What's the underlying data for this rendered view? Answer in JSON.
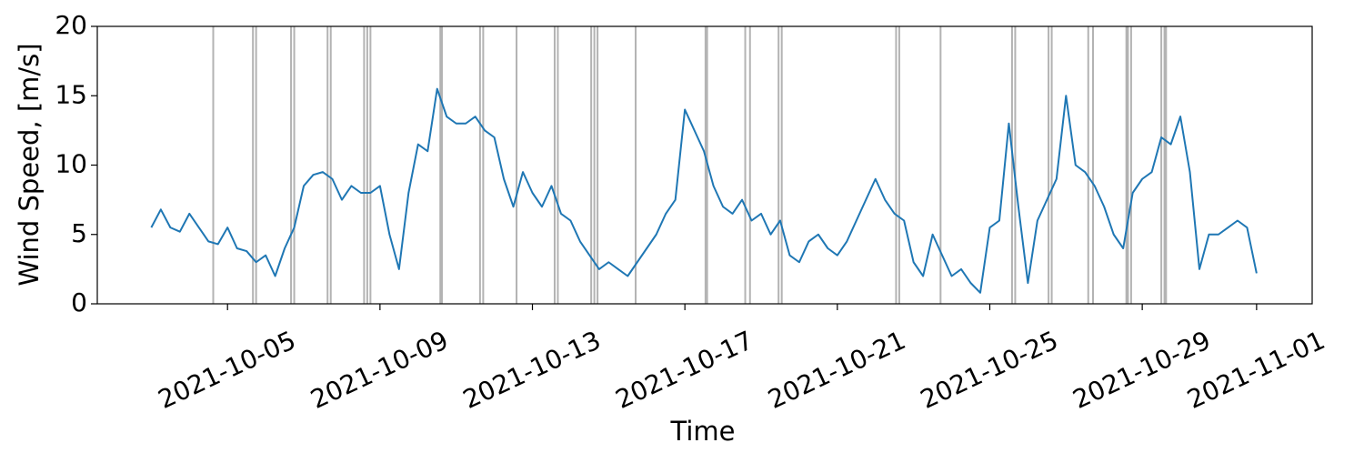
{
  "chart_data": {
    "type": "line",
    "xlabel": "Time",
    "ylabel": "Wind Speed, [m/s]",
    "xlim": [
      "2021-10-01T14:00",
      "2021-11-02T11:00"
    ],
    "ylim": [
      0,
      20
    ],
    "xticks": [
      "2021-10-05",
      "2021-10-09",
      "2021-10-13",
      "2021-10-17",
      "2021-10-21",
      "2021-10-25",
      "2021-10-29",
      "2021-11-01"
    ],
    "yticks": [
      0,
      5,
      10,
      15,
      20
    ],
    "grid": false,
    "series": [
      {
        "color": "#1f77b4",
        "x": [
          "2021-10-03T00:00",
          "2021-10-03T06:00",
          "2021-10-03T12:00",
          "2021-10-03T18:00",
          "2021-10-04T00:00",
          "2021-10-04T06:00",
          "2021-10-04T12:00",
          "2021-10-04T18:00",
          "2021-10-05T00:00",
          "2021-10-05T06:00",
          "2021-10-05T12:00",
          "2021-10-05T18:00",
          "2021-10-06T00:00",
          "2021-10-06T06:00",
          "2021-10-06T12:00",
          "2021-10-06T18:00",
          "2021-10-07T00:00",
          "2021-10-07T06:00",
          "2021-10-07T12:00",
          "2021-10-07T18:00",
          "2021-10-08T00:00",
          "2021-10-08T06:00",
          "2021-10-08T12:00",
          "2021-10-08T18:00",
          "2021-10-09T00:00",
          "2021-10-09T06:00",
          "2021-10-09T12:00",
          "2021-10-09T18:00",
          "2021-10-10T00:00",
          "2021-10-10T06:00",
          "2021-10-10T12:00",
          "2021-10-10T18:00",
          "2021-10-11T00:00",
          "2021-10-11T06:00",
          "2021-10-11T12:00",
          "2021-10-11T18:00",
          "2021-10-12T00:00",
          "2021-10-12T06:00",
          "2021-10-12T12:00",
          "2021-10-12T18:00",
          "2021-10-13T00:00",
          "2021-10-13T06:00",
          "2021-10-13T12:00",
          "2021-10-13T18:00",
          "2021-10-14T00:00",
          "2021-10-14T06:00",
          "2021-10-14T12:00",
          "2021-10-14T18:00",
          "2021-10-15T00:00",
          "2021-10-15T06:00",
          "2021-10-15T12:00",
          "2021-10-15T18:00",
          "2021-10-16T00:00",
          "2021-10-16T06:00",
          "2021-10-16T12:00",
          "2021-10-16T18:00",
          "2021-10-17T00:00",
          "2021-10-17T06:00",
          "2021-10-17T12:00",
          "2021-10-17T18:00",
          "2021-10-18T00:00",
          "2021-10-18T06:00",
          "2021-10-18T12:00",
          "2021-10-18T18:00",
          "2021-10-19T00:00",
          "2021-10-19T06:00",
          "2021-10-19T12:00",
          "2021-10-19T18:00",
          "2021-10-20T00:00",
          "2021-10-20T06:00",
          "2021-10-20T12:00",
          "2021-10-20T18:00",
          "2021-10-21T00:00",
          "2021-10-21T06:00",
          "2021-10-21T12:00",
          "2021-10-21T18:00",
          "2021-10-22T00:00",
          "2021-10-22T06:00",
          "2021-10-22T12:00",
          "2021-10-22T18:00",
          "2021-10-23T00:00",
          "2021-10-23T06:00",
          "2021-10-23T12:00",
          "2021-10-23T18:00",
          "2021-10-24T00:00",
          "2021-10-24T06:00",
          "2021-10-24T12:00",
          "2021-10-24T18:00",
          "2021-10-25T00:00",
          "2021-10-25T06:00",
          "2021-10-25T12:00",
          "2021-10-25T18:00",
          "2021-10-26T00:00",
          "2021-10-26T06:00",
          "2021-10-26T12:00",
          "2021-10-26T18:00",
          "2021-10-27T00:00",
          "2021-10-27T06:00",
          "2021-10-27T12:00",
          "2021-10-27T18:00",
          "2021-10-28T00:00",
          "2021-10-28T06:00",
          "2021-10-28T12:00",
          "2021-10-28T18:00",
          "2021-10-29T00:00",
          "2021-10-29T06:00",
          "2021-10-29T12:00",
          "2021-10-29T18:00",
          "2021-10-30T00:00",
          "2021-10-30T06:00",
          "2021-10-30T12:00",
          "2021-10-30T18:00",
          "2021-10-31T00:00",
          "2021-10-31T06:00",
          "2021-10-31T12:00",
          "2021-10-31T18:00",
          "2021-11-01T00:00"
        ],
        "values": [
          5.5,
          6.8,
          5.5,
          5.2,
          6.5,
          5.5,
          4.5,
          4.3,
          5.5,
          4.0,
          3.8,
          3.0,
          3.5,
          2.0,
          4.0,
          5.5,
          8.5,
          9.3,
          9.5,
          9.0,
          7.5,
          8.5,
          8.0,
          8.0,
          8.5,
          5.0,
          2.5,
          8.0,
          11.5,
          11.0,
          15.5,
          13.5,
          13.0,
          13.0,
          13.5,
          12.5,
          12.0,
          9.0,
          7.0,
          9.5,
          8.0,
          7.0,
          8.5,
          6.5,
          6.0,
          4.5,
          3.5,
          2.5,
          3.0,
          2.5,
          2.0,
          3.0,
          4.0,
          5.0,
          6.5,
          7.5,
          14.0,
          12.5,
          11.0,
          8.5,
          7.0,
          6.5,
          7.5,
          6.0,
          6.5,
          5.0,
          6.0,
          3.5,
          3.0,
          4.5,
          5.0,
          4.0,
          3.5,
          4.5,
          6.0,
          7.5,
          9.0,
          7.5,
          6.5,
          6.0,
          3.0,
          2.0,
          5.0,
          3.5,
          2.0,
          2.5,
          1.5,
          0.8,
          5.5,
          6.0,
          13.0,
          7.0,
          1.5,
          6.0,
          7.5,
          9.0,
          15.0,
          10.0,
          9.5,
          8.5,
          7.0,
          5.0,
          4.0,
          8.0,
          9.0,
          9.5,
          12.0,
          11.5,
          13.5,
          9.5,
          2.5,
          5.0,
          5.0,
          5.5,
          6.0,
          5.5,
          2.2
        ]
      }
    ],
    "vlines": {
      "color": "#b3b3b3",
      "x": [
        "2021-10-04T15:00",
        "2021-10-05T16:00",
        "2021-10-05T18:00",
        "2021-10-06T16:00",
        "2021-10-06T18:00",
        "2021-10-07T15:00",
        "2021-10-07T17:00",
        "2021-10-08T14:00",
        "2021-10-08T16:00",
        "2021-10-08T18:00",
        "2021-10-10T14:00",
        "2021-10-10T15:00",
        "2021-10-11T15:00",
        "2021-10-11T17:00",
        "2021-10-12T14:00",
        "2021-10-13T14:00",
        "2021-10-13T16:00",
        "2021-10-14T13:00",
        "2021-10-14T15:00",
        "2021-10-14T17:00",
        "2021-10-15T17:00",
        "2021-10-17T13:00",
        "2021-10-17T14:00",
        "2021-10-18T14:00",
        "2021-10-18T17:00",
        "2021-10-19T11:00",
        "2021-10-19T13:00",
        "2021-10-22T13:00",
        "2021-10-22T15:00",
        "2021-10-23T17:00",
        "2021-10-25T14:00",
        "2021-10-25T16:00",
        "2021-10-26T13:00",
        "2021-10-26T15:00",
        "2021-10-27T14:00",
        "2021-10-27T17:00",
        "2021-10-28T14:00",
        "2021-10-28T15:00",
        "2021-10-28T17:00",
        "2021-10-29T12:00",
        "2021-10-29T14:00",
        "2021-10-29T15:00"
      ]
    }
  }
}
